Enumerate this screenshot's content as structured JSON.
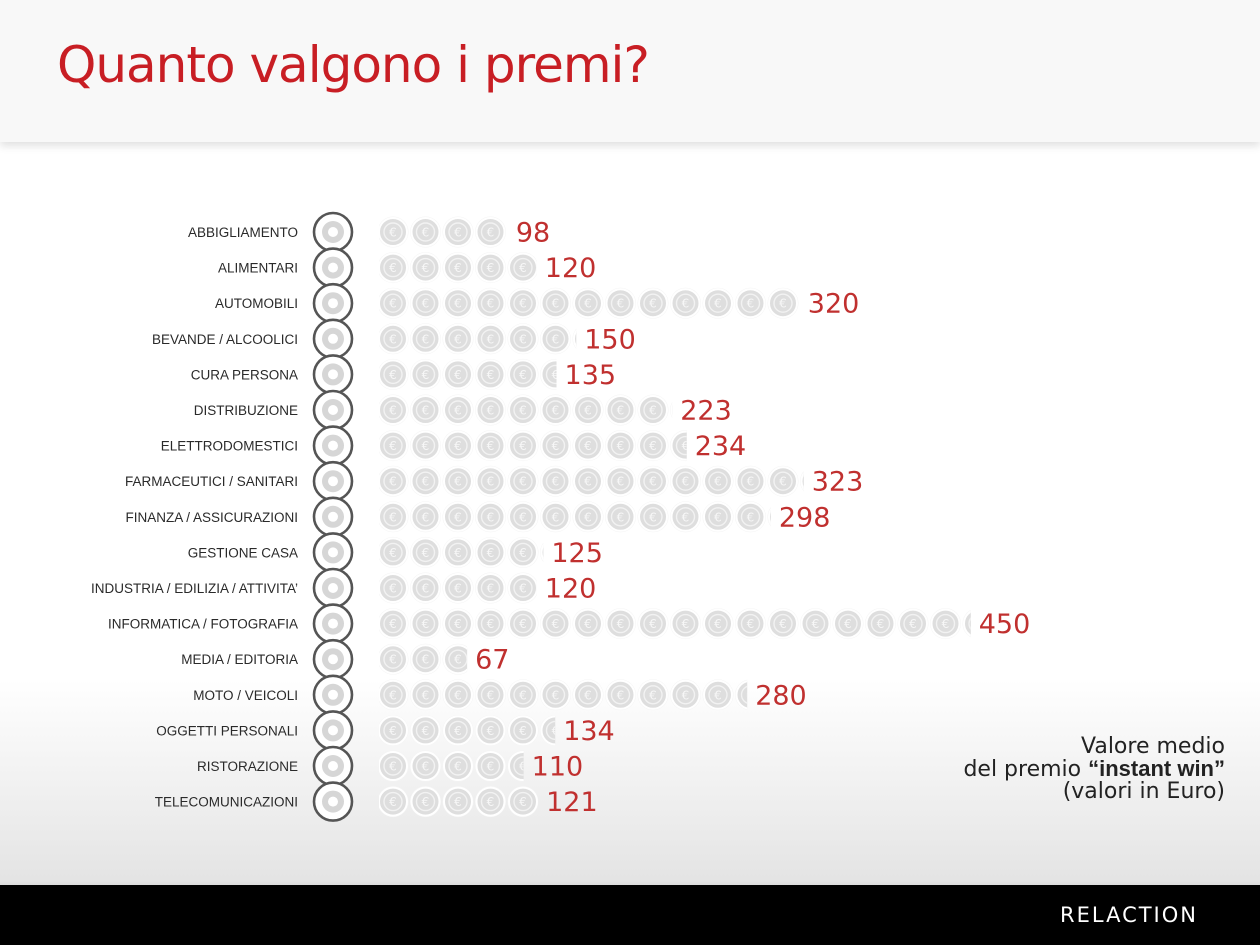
{
  "page": {
    "title": "Quanto valgono i premi?",
    "brand": "RELACTION",
    "legend": {
      "line1": "Valore medio",
      "line2_prefix": "del premio ",
      "line2_bold": "“instant win”",
      "line3": "(valori in Euro)"
    }
  },
  "colors": {
    "title": "#c81e24",
    "value_labels": "#c0302f",
    "coin_fill": "#dedede",
    "coin_ring": "#f4f4f4",
    "icon_ring": "#555555",
    "footer": "#000000"
  },
  "chart_data": {
    "type": "bar",
    "orientation": "horizontal",
    "mark": "euro-coins",
    "unit": "Euro",
    "categories": [
      "ABBIGLIAMENTO",
      "ALIMENTARI",
      "AUTOMOBILI",
      "BEVANDE / ALCOOLICI",
      "CURA PERSONA",
      "DISTRIBUZIONE",
      "ELETTRODOMESTICI",
      "FARMACEUTICI / SANITARI",
      "FINANZA / ASSICURAZIONI",
      "GESTIONE CASA",
      "INDUSTRIA / EDILIZIA / ATTIVITA’",
      "INFORMATICA / FOTOGRAFIA",
      "MEDIA / EDITORIA",
      "MOTO / VEICOLI",
      "OGGETTI PERSONALI",
      "RISTORAZIONE",
      "TELECOMUNICAZIONI"
    ],
    "values": [
      98,
      120,
      320,
      150,
      135,
      223,
      234,
      323,
      298,
      125,
      120,
      450,
      67,
      280,
      134,
      110,
      121
    ],
    "icons": [
      "shirt-icon",
      "food-icon",
      "car-icon",
      "bottle-icon",
      "perfume-icon",
      "cart-icon",
      "plug-icon",
      "cross-icon",
      "coins-icon",
      "house-icon",
      "gear-icon",
      "camera-icon",
      "broadcast-icon",
      "scooter-icon",
      "person-icon",
      "cloche-icon",
      "phone-icon"
    ],
    "legend": "none",
    "grid": false
  }
}
